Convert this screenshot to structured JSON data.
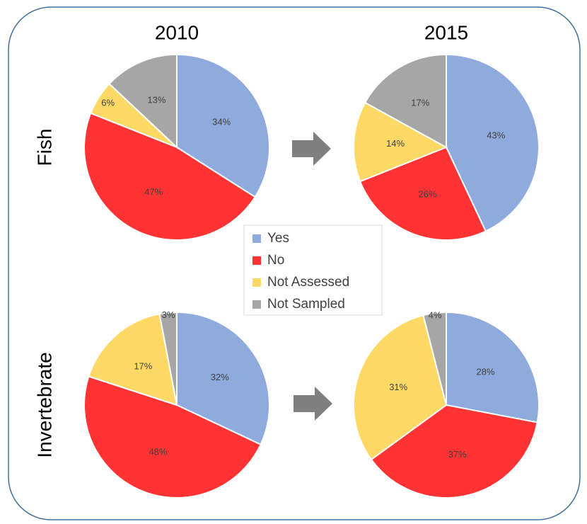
{
  "columns": [
    "2010",
    "2015"
  ],
  "rows": [
    "Fish",
    "Invertebrate"
  ],
  "legend": {
    "categories": [
      "Yes",
      "No",
      "Not Assessed",
      "Not Sampled"
    ],
    "colors": [
      "#8faadc",
      "#ff3333",
      "#ffd966",
      "#a6a6a6"
    ]
  },
  "chart_data": [
    {
      "type": "pie",
      "values": [
        34,
        47,
        6,
        13
      ],
      "value_labels": [
        "34%",
        "47%",
        "6%",
        "13%"
      ]
    },
    {
      "type": "pie",
      "values": [
        43,
        26,
        14,
        17
      ],
      "value_labels": [
        "43%",
        "26%",
        "14%",
        "17%"
      ]
    },
    {
      "type": "pie",
      "values": [
        32,
        48,
        17,
        3
      ],
      "value_labels": [
        "32%",
        "48%",
        "17%",
        "3%"
      ]
    },
    {
      "type": "pie",
      "values": [
        28,
        37,
        31,
        4
      ],
      "value_labels": [
        "28%",
        "37%",
        "31%",
        "4%"
      ]
    }
  ]
}
